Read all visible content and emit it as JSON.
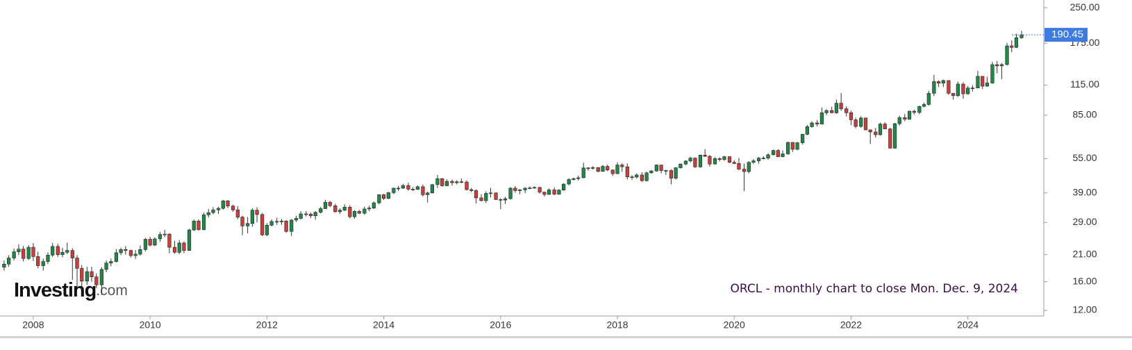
{
  "chart_data": {
    "type": "candlestick",
    "annotation": "ORCL - monthly chart to close Mon. Dec. 9, 2024",
    "watermark": {
      "brand": "Investing",
      "suffix": ".com"
    },
    "log_scale": true,
    "grid": false,
    "up_color": "#23874a",
    "down_color": "#c8403c",
    "price_line_color": "#3d7be0",
    "xlim": [
      2007.43,
      2025.3
    ],
    "xticks": [
      2008,
      2010,
      2012,
      2014,
      2016,
      2018,
      2020,
      2022,
      2024
    ],
    "ylim": [
      11.35,
      270
    ],
    "yticks": [
      {
        "value": 12,
        "label": "12.00"
      },
      {
        "value": 16,
        "label": "16.00"
      },
      {
        "value": 21,
        "label": "21.00"
      },
      {
        "value": 29,
        "label": "29.00"
      },
      {
        "value": 39,
        "label": "39.00"
      },
      {
        "value": 55,
        "label": "55.00"
      },
      {
        "value": 85,
        "label": "85.00"
      },
      {
        "value": 115,
        "label": "115.00"
      },
      {
        "value": 175,
        "label": "175.00"
      },
      {
        "value": 250,
        "label": "250.00"
      }
    ],
    "x": [
      2007.5,
      2007.58,
      2007.67,
      2007.75,
      2007.83,
      2007.92,
      2008.0,
      2008.08,
      2008.17,
      2008.25,
      2008.33,
      2008.42,
      2008.5,
      2008.58,
      2008.67,
      2008.75,
      2008.83,
      2008.92,
      2009.0,
      2009.08,
      2009.17,
      2009.25,
      2009.33,
      2009.42,
      2009.5,
      2009.58,
      2009.67,
      2009.75,
      2009.83,
      2009.92,
      2010.0,
      2010.08,
      2010.17,
      2010.25,
      2010.33,
      2010.42,
      2010.5,
      2010.58,
      2010.67,
      2010.75,
      2010.83,
      2010.92,
      2011.0,
      2011.08,
      2011.17,
      2011.25,
      2011.33,
      2011.42,
      2011.5,
      2011.58,
      2011.67,
      2011.75,
      2011.83,
      2011.92,
      2012.0,
      2012.08,
      2012.17,
      2012.25,
      2012.33,
      2012.42,
      2012.5,
      2012.58,
      2012.67,
      2012.75,
      2012.83,
      2012.92,
      2013.0,
      2013.08,
      2013.17,
      2013.25,
      2013.33,
      2013.42,
      2013.5,
      2013.58,
      2013.67,
      2013.75,
      2013.83,
      2013.92,
      2014.0,
      2014.08,
      2014.17,
      2014.25,
      2014.33,
      2014.42,
      2014.5,
      2014.58,
      2014.67,
      2014.75,
      2014.83,
      2014.92,
      2015.0,
      2015.08,
      2015.17,
      2015.25,
      2015.33,
      2015.42,
      2015.5,
      2015.58,
      2015.67,
      2015.75,
      2015.83,
      2015.92,
      2016.0,
      2016.08,
      2016.17,
      2016.25,
      2016.33,
      2016.42,
      2016.5,
      2016.58,
      2016.67,
      2016.75,
      2016.83,
      2016.92,
      2017.0,
      2017.08,
      2017.17,
      2017.25,
      2017.33,
      2017.42,
      2017.5,
      2017.58,
      2017.67,
      2017.75,
      2017.83,
      2017.92,
      2018.0,
      2018.08,
      2018.17,
      2018.25,
      2018.33,
      2018.42,
      2018.5,
      2018.58,
      2018.67,
      2018.75,
      2018.83,
      2018.92,
      2019.0,
      2019.08,
      2019.17,
      2019.25,
      2019.33,
      2019.42,
      2019.5,
      2019.58,
      2019.67,
      2019.75,
      2019.83,
      2019.92,
      2020.0,
      2020.08,
      2020.17,
      2020.25,
      2020.33,
      2020.42,
      2020.5,
      2020.58,
      2020.67,
      2020.75,
      2020.83,
      2020.92,
      2021.0,
      2021.08,
      2021.17,
      2021.25,
      2021.33,
      2021.42,
      2021.5,
      2021.58,
      2021.67,
      2021.75,
      2021.83,
      2021.92,
      2022.0,
      2022.08,
      2022.17,
      2022.25,
      2022.33,
      2022.42,
      2022.5,
      2022.58,
      2022.67,
      2022.75,
      2022.83,
      2022.92,
      2023.0,
      2023.08,
      2023.17,
      2023.25,
      2023.33,
      2023.42,
      2023.5,
      2023.58,
      2023.67,
      2023.75,
      2023.83,
      2023.92,
      2024.0,
      2024.08,
      2024.17,
      2024.25,
      2024.33,
      2024.42,
      2024.5,
      2024.58,
      2024.67,
      2024.75,
      2024.83,
      2024.92
    ],
    "open": [
      18.5,
      19.1,
      20.3,
      21.6,
      22.2,
      20.2,
      22.6,
      20.6,
      18.8,
      19.6,
      20.9,
      22.8,
      21.0,
      21.5,
      21.9,
      20.3,
      18.3,
      16.1,
      17.7,
      16.8,
      15.5,
      18.1,
      19.3,
      19.6,
      21.4,
      22.1,
      21.9,
      20.8,
      21.1,
      22.1,
      24.5,
      23.1,
      24.6,
      25.7,
      25.8,
      22.6,
      21.5,
      23.6,
      21.9,
      26.9,
      29.4,
      27.0,
      31.3,
      32.0,
      32.9,
      33.4,
      36.0,
      34.2,
      32.9,
      30.6,
      28.0,
      28.7,
      32.8,
      31.4,
      25.6,
      28.2,
      29.3,
      29.2,
      29.4,
      26.5,
      29.7,
      30.2,
      31.6,
      31.5,
      31.0,
      32.1,
      33.3,
      35.5,
      34.3,
      32.3,
      32.8,
      33.8,
      30.7,
      32.4,
      31.8,
      33.2,
      33.5,
      35.3,
      38.3,
      36.9,
      39.1,
      40.9,
      40.9,
      42.0,
      40.5,
      40.4,
      41.5,
      38.3,
      39.0,
      42.4,
      45.0,
      41.9,
      43.8,
      43.2,
      43.6,
      43.5,
      40.3,
      39.9,
      37.1,
      36.1,
      38.8,
      39.0,
      36.5,
      36.3,
      36.8,
      40.9,
      39.9,
      40.2,
      40.9,
      41.0,
      41.2,
      39.3,
      38.4,
      40.2,
      38.5,
      40.1,
      42.6,
      44.6,
      45.0,
      45.4,
      50.1,
      49.9,
      50.3,
      48.4,
      50.9,
      49.1,
      47.3,
      51.6,
      50.7,
      45.8,
      45.7,
      46.7,
      44.1,
      47.7,
      48.6,
      51.6,
      48.8,
      48.8,
      45.2,
      50.2,
      52.1,
      53.7,
      55.3,
      50.6,
      57.0,
      56.3,
      52.1,
      55.0,
      54.5,
      56.1,
      53.0,
      52.4,
      49.5,
      48.3,
      53.0,
      53.8,
      55.3,
      55.3,
      57.2,
      59.7,
      56.1,
      57.7,
      64.7,
      60.4,
      64.5,
      70.2,
      75.8,
      78.7,
      77.8,
      87.1,
      89.1,
      87.1,
      95.9,
      90.7,
      87.2,
      81.2,
      76.0,
      82.7,
      73.4,
      71.9,
      69.9,
      77.8,
      74.1,
      61.1,
      78.1,
      83.0,
      81.7,
      88.5,
      87.4,
      92.9,
      94.7,
      105.9,
      119.1,
      117.2,
      120.4,
      105.9,
      103.4,
      116.2,
      105.4,
      111.7,
      111.7,
      125.6,
      113.8,
      117.5,
      141.2,
      139.4,
      141.3,
      170.4,
      167.8,
      184.9
    ],
    "high": [
      19.8,
      20.9,
      22.3,
      23.3,
      22.9,
      23.1,
      23.6,
      21.6,
      20.2,
      21.5,
      23.6,
      23.4,
      22.5,
      23.7,
      22.4,
      20.9,
      18.9,
      18.6,
      18.6,
      17.4,
      18.5,
      19.8,
      20.2,
      22.2,
      22.5,
      22.9,
      22.1,
      22.0,
      23.0,
      24.8,
      25.1,
      25.0,
      26.4,
      26.9,
      26.0,
      24.1,
      24.3,
      24.0,
      27.2,
      29.9,
      29.9,
      32.0,
      33.2,
      33.8,
      34.0,
      36.4,
      36.3,
      34.6,
      34.1,
      31.0,
      30.6,
      33.4,
      33.8,
      31.9,
      28.8,
      29.9,
      30.4,
      30.0,
      29.7,
      30.0,
      31.0,
      32.5,
      32.5,
      32.0,
      32.5,
      33.9,
      36.4,
      36.0,
      35.0,
      33.4,
      34.8,
      34.5,
      32.8,
      32.9,
      34.0,
      34.3,
      35.8,
      38.5,
      38.6,
      39.4,
      41.1,
      41.9,
      42.7,
      43.2,
      41.3,
      42.0,
      42.4,
      39.5,
      42.6,
      46.7,
      45.2,
      44.7,
      44.6,
      44.3,
      45.0,
      44.2,
      41.0,
      40.4,
      38.5,
      39.6,
      41.0,
      39.2,
      37.0,
      37.5,
      41.3,
      41.8,
      40.5,
      41.3,
      41.7,
      41.6,
      41.5,
      39.5,
      40.8,
      41.2,
      40.5,
      43.0,
      45.2,
      45.5,
      46.4,
      52.8,
      50.5,
      51.0,
      50.5,
      51.6,
      51.8,
      49.3,
      53.0,
      52.6,
      52.4,
      46.6,
      47.5,
      48.0,
      48.2,
      49.0,
      51.9,
      51.6,
      49.2,
      49.4,
      50.5,
      52.4,
      54.0,
      56.0,
      55.7,
      57.2,
      60.5,
      57.0,
      55.8,
      55.8,
      56.5,
      56.3,
      54.1,
      55.4,
      52.3,
      53.6,
      54.8,
      55.9,
      56.4,
      58.0,
      60.2,
      60.4,
      59.7,
      65.2,
      65.0,
      65.0,
      70.5,
      77.0,
      80.0,
      81.0,
      91.8,
      90.4,
      92.7,
      99.5,
      106.3,
      93.0,
      89.0,
      83.0,
      84.2,
      82.9,
      73.8,
      74.9,
      78.8,
      79.2,
      74.8,
      78.7,
      84.6,
      86.2,
      89.0,
      90.0,
      93.5,
      96.4,
      108.5,
      127.5,
      120.5,
      121.5,
      120.6,
      106.3,
      119.3,
      118.3,
      114.0,
      115.0,
      132.8,
      125.9,
      125.0,
      145.3,
      146.6,
      143.3,
      175.6,
      180.3,
      192.3,
      198.3
    ],
    "low": [
      17.9,
      18.6,
      19.8,
      20.9,
      19.6,
      19.9,
      19.7,
      18.3,
      17.9,
      19.1,
      20.5,
      20.5,
      20.4,
      21.1,
      16.3,
      15.0,
      14.9,
      15.5,
      16.0,
      15.0,
      14.0,
      17.6,
      18.7,
      19.4,
      20.9,
      21.0,
      20.4,
      20.1,
      20.8,
      21.7,
      22.8,
      22.9,
      23.9,
      25.0,
      21.3,
      21.2,
      21.1,
      21.3,
      21.8,
      26.6,
      26.7,
      26.8,
      30.5,
      31.5,
      31.6,
      33.0,
      33.5,
      32.3,
      30.0,
      25.5,
      26.0,
      27.8,
      29.0,
      25.3,
      25.3,
      27.9,
      28.3,
      28.3,
      26.2,
      25.3,
      29.1,
      29.9,
      30.8,
      30.3,
      29.8,
      31.7,
      33.2,
      33.8,
      32.0,
      31.6,
      32.5,
      30.2,
      30.1,
      31.5,
      31.3,
      32.4,
      33.2,
      34.8,
      36.3,
      36.7,
      38.5,
      39.8,
      40.6,
      39.9,
      39.8,
      40.2,
      37.6,
      35.4,
      38.8,
      41.0,
      41.5,
      41.7,
      42.0,
      42.5,
      43.0,
      40.0,
      39.3,
      35.1,
      35.8,
      35.2,
      37.3,
      36.3,
      33.1,
      34.9,
      36.5,
      39.1,
      38.5,
      38.9,
      40.5,
      40.7,
      38.7,
      37.6,
      38.3,
      38.2,
      38.3,
      39.9,
      42.2,
      44.2,
      44.2,
      45.2,
      48.8,
      49.3,
      47.9,
      48.2,
      48.5,
      46.2,
      47.1,
      48.2,
      44.6,
      44.4,
      45.1,
      43.6,
      43.7,
      47.3,
      48.2,
      47.4,
      46.7,
      42.5,
      44.7,
      49.8,
      51.5,
      53.0,
      50.2,
      50.3,
      55.9,
      50.8,
      51.9,
      53.5,
      53.8,
      52.6,
      52.0,
      49.0,
      39.7,
      47.4,
      52.1,
      52.4,
      54.6,
      54.4,
      56.8,
      55.8,
      55.7,
      57.2,
      58.8,
      59.8,
      63.3,
      69.6,
      75.0,
      75.9,
      77.5,
      85.1,
      86.6,
      86.2,
      88.9,
      84.0,
      77.0,
      74.6,
      74.9,
      73.2,
      63.8,
      67.9,
      69.3,
      74.0,
      60.8,
      60.8,
      76.6,
      80.0,
      81.2,
      85.6,
      85.9,
      92.0,
      93.5,
      103.0,
      112.9,
      112.7,
      104.3,
      99.3,
      102.2,
      100.4,
      104.3,
      107.8,
      111.4,
      110.4,
      113.0,
      116.4,
      129.5,
      122.0,
      140.0,
      159.9,
      166.9,
      183.0
    ],
    "close": [
      19.1,
      20.3,
      21.6,
      22.2,
      20.2,
      22.6,
      20.6,
      18.8,
      19.6,
      20.9,
      22.8,
      21.0,
      21.5,
      21.9,
      20.3,
      18.3,
      16.1,
      17.7,
      16.8,
      15.5,
      18.1,
      19.3,
      19.6,
      21.4,
      22.1,
      21.9,
      20.8,
      21.1,
      22.1,
      24.5,
      23.1,
      24.6,
      25.7,
      25.8,
      22.6,
      21.5,
      23.6,
      21.9,
      26.9,
      29.4,
      27.0,
      31.3,
      32.0,
      32.9,
      33.4,
      36.0,
      34.2,
      32.9,
      30.6,
      28.0,
      28.7,
      32.8,
      31.4,
      25.6,
      28.2,
      29.3,
      29.2,
      29.4,
      26.5,
      29.7,
      30.2,
      31.6,
      31.5,
      31.0,
      32.1,
      33.3,
      35.5,
      34.3,
      32.3,
      32.8,
      33.8,
      30.7,
      32.4,
      31.8,
      33.2,
      33.5,
      35.3,
      38.3,
      36.9,
      39.1,
      40.9,
      40.9,
      42.0,
      40.5,
      40.4,
      41.5,
      38.3,
      39.0,
      42.4,
      45.0,
      41.9,
      43.8,
      43.2,
      43.6,
      43.5,
      40.3,
      39.9,
      37.1,
      36.1,
      38.8,
      39.0,
      36.5,
      36.3,
      36.8,
      40.9,
      39.9,
      40.2,
      40.9,
      41.0,
      41.2,
      39.3,
      38.4,
      40.2,
      38.5,
      40.1,
      42.6,
      44.6,
      45.0,
      45.4,
      50.1,
      49.9,
      50.3,
      48.4,
      50.9,
      49.1,
      47.3,
      51.6,
      50.7,
      45.8,
      45.7,
      46.7,
      44.1,
      47.7,
      48.6,
      51.6,
      48.8,
      48.8,
      45.2,
      50.2,
      52.1,
      53.7,
      55.3,
      50.6,
      57.0,
      56.3,
      52.1,
      55.0,
      54.5,
      56.1,
      53.0,
      52.4,
      49.5,
      48.3,
      53.0,
      53.8,
      55.3,
      55.3,
      57.2,
      59.7,
      56.1,
      57.7,
      64.7,
      60.4,
      64.5,
      70.2,
      75.8,
      78.7,
      77.8,
      87.1,
      89.1,
      87.1,
      95.9,
      90.7,
      87.2,
      81.2,
      76.0,
      82.7,
      73.4,
      71.9,
      69.9,
      77.8,
      74.1,
      61.1,
      78.1,
      83.0,
      81.7,
      88.5,
      87.4,
      92.9,
      94.7,
      105.9,
      119.1,
      117.2,
      120.4,
      105.9,
      103.4,
      116.2,
      105.4,
      111.7,
      111.7,
      125.6,
      113.8,
      117.5,
      141.2,
      139.4,
      141.3,
      170.4,
      167.8,
      184.9,
      190.45
    ]
  }
}
